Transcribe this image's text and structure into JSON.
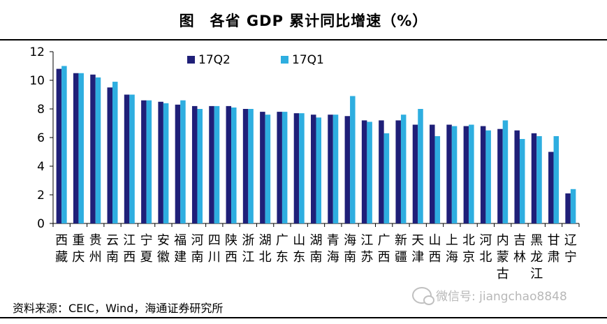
{
  "title": "图　各省 GDP 累计同比增速（%）",
  "source": "资料来源：CEIC，Wind，海通证券研究所",
  "watermark": "微信号: jiangchao8848",
  "colors": {
    "series1": "#1f1f78",
    "series2": "#2eaee0"
  },
  "chart_data": {
    "type": "bar",
    "categories": [
      "西藏",
      "重庆",
      "贵州",
      "云南",
      "江西",
      "宁夏",
      "安徽",
      "福建",
      "河南",
      "四川",
      "陕西",
      "浙江",
      "湖北",
      "广东",
      "山东",
      "湖南",
      "青海",
      "海南",
      "江苏",
      "广西",
      "新疆",
      "天津",
      "山西",
      "上海",
      "北京",
      "河北",
      "内蒙古",
      "吉林",
      "黑龙江",
      "甘肃",
      "辽宁"
    ],
    "series": [
      {
        "name": "17Q2",
        "values": [
          10.8,
          10.5,
          10.4,
          9.5,
          9.0,
          8.6,
          8.5,
          8.3,
          8.2,
          8.2,
          8.2,
          8.0,
          7.8,
          7.8,
          7.7,
          7.6,
          7.6,
          7.5,
          7.2,
          7.2,
          7.2,
          6.9,
          6.9,
          6.9,
          6.8,
          6.8,
          6.6,
          6.5,
          6.3,
          5.0,
          2.1
        ]
      },
      {
        "name": "17Q1",
        "values": [
          11.0,
          10.5,
          10.2,
          9.9,
          9.0,
          8.6,
          8.4,
          8.6,
          8.0,
          8.2,
          8.1,
          8.0,
          7.6,
          7.8,
          7.7,
          7.4,
          7.6,
          8.9,
          7.1,
          6.3,
          7.6,
          8.0,
          6.1,
          6.8,
          6.9,
          6.5,
          7.2,
          5.9,
          6.1,
          6.1,
          2.4
        ]
      }
    ],
    "ylim": [
      0,
      12
    ],
    "yticks": [
      0,
      2,
      4,
      6,
      8,
      10,
      12
    ],
    "legend": "top-left"
  }
}
